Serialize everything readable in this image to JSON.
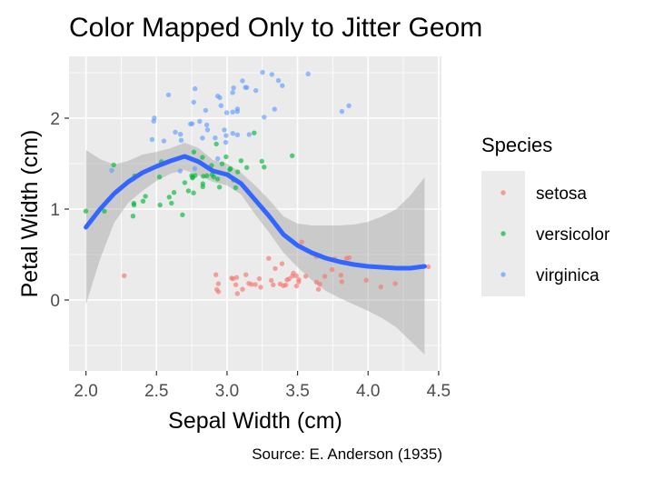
{
  "chart_data": {
    "type": "scatter",
    "title": "Color Mapped Only to Jitter Geom",
    "xlabel": "Sepal Width (cm)",
    "ylabel": "Petal Width (cm)",
    "caption": "Source: E. Anderson (1935)",
    "xlim": [
      1.88,
      4.52
    ],
    "ylim": [
      -0.78,
      2.68
    ],
    "x_ticks": [
      2.0,
      2.5,
      3.0,
      3.5,
      4.0,
      4.5
    ],
    "x_tick_labels": [
      "2.0",
      "2.5",
      "3.0",
      "3.5",
      "4.0",
      "4.5"
    ],
    "y_ticks": [
      0,
      1,
      2
    ],
    "y_tick_labels": [
      "0",
      "1",
      "2"
    ],
    "grid": true,
    "legend": {
      "title": "Species",
      "position": "right"
    },
    "series": [
      {
        "name": "setosa",
        "color": "#F8766D",
        "points": [
          [
            3.51,
            0.19
          ],
          [
            3.0,
            0.22
          ],
          [
            3.21,
            0.17
          ],
          [
            3.1,
            0.18
          ],
          [
            3.62,
            0.21
          ],
          [
            3.9,
            0.42
          ],
          [
            3.4,
            0.29
          ],
          [
            3.4,
            0.2
          ],
          [
            2.9,
            0.17
          ],
          [
            3.1,
            0.12
          ],
          [
            3.7,
            0.19
          ],
          [
            3.4,
            0.22
          ],
          [
            3.0,
            0.1
          ],
          [
            3.0,
            0.12
          ],
          [
            4.0,
            0.21
          ],
          [
            4.4,
            0.4
          ],
          [
            3.9,
            0.38
          ],
          [
            3.5,
            0.31
          ],
          [
            3.8,
            0.3
          ],
          [
            3.8,
            0.29
          ],
          [
            3.4,
            0.2
          ],
          [
            3.7,
            0.41
          ],
          [
            3.6,
            0.2
          ],
          [
            3.3,
            0.5
          ],
          [
            3.4,
            0.18
          ],
          [
            3.0,
            0.21
          ],
          [
            3.4,
            0.39
          ],
          [
            3.5,
            0.22
          ],
          [
            3.4,
            0.18
          ],
          [
            3.2,
            0.21
          ],
          [
            3.1,
            0.2
          ],
          [
            3.4,
            0.4
          ],
          [
            4.1,
            0.09
          ],
          [
            4.2,
            0.19
          ],
          [
            3.1,
            0.21
          ],
          [
            3.2,
            0.2
          ],
          [
            3.5,
            0.22
          ],
          [
            3.6,
            0.1
          ],
          [
            3.0,
            0.19
          ],
          [
            3.4,
            0.21
          ],
          [
            3.5,
            0.3
          ],
          [
            2.3,
            0.29
          ],
          [
            3.2,
            0.2
          ],
          [
            3.5,
            0.6
          ],
          [
            3.8,
            0.38
          ],
          [
            3.0,
            0.3
          ],
          [
            3.8,
            0.21
          ],
          [
            3.2,
            0.2
          ],
          [
            3.7,
            0.2
          ],
          [
            3.3,
            0.22
          ]
        ]
      },
      {
        "name": "versicolor",
        "color": "#00BA38",
        "points": [
          [
            3.2,
            1.41
          ],
          [
            3.2,
            1.5
          ],
          [
            3.1,
            1.5
          ],
          [
            2.3,
            1.3
          ],
          [
            2.8,
            1.51
          ],
          [
            2.8,
            1.3
          ],
          [
            3.3,
            1.6
          ],
          [
            2.4,
            1.0
          ],
          [
            2.9,
            1.3
          ],
          [
            2.7,
            1.4
          ],
          [
            2.0,
            1.05
          ],
          [
            3.0,
            1.5
          ],
          [
            2.2,
            1.0
          ],
          [
            2.9,
            1.4
          ],
          [
            2.9,
            1.3
          ],
          [
            3.1,
            1.4
          ],
          [
            3.0,
            1.5
          ],
          [
            2.7,
            1.0
          ],
          [
            2.2,
            1.5
          ],
          [
            2.5,
            1.1
          ],
          [
            3.2,
            1.8
          ],
          [
            2.8,
            1.3
          ],
          [
            2.5,
            1.5
          ],
          [
            2.8,
            1.2
          ],
          [
            2.9,
            1.3
          ],
          [
            3.0,
            1.4
          ],
          [
            2.8,
            1.4
          ],
          [
            3.0,
            1.7
          ],
          [
            2.9,
            1.5
          ],
          [
            2.6,
            1.0
          ],
          [
            2.4,
            1.1
          ],
          [
            2.4,
            1.0
          ],
          [
            2.7,
            1.2
          ],
          [
            2.7,
            1.6
          ],
          [
            3.0,
            1.5
          ],
          [
            3.4,
            1.6
          ],
          [
            3.1,
            1.5
          ],
          [
            2.3,
            1.3
          ],
          [
            3.0,
            1.3
          ],
          [
            2.5,
            1.3
          ],
          [
            2.6,
            1.2
          ],
          [
            3.0,
            1.4
          ],
          [
            2.6,
            1.2
          ],
          [
            2.3,
            1.0
          ],
          [
            2.7,
            1.3
          ],
          [
            3.0,
            1.2
          ],
          [
            2.9,
            1.3
          ],
          [
            2.9,
            1.3
          ],
          [
            2.5,
            1.1
          ],
          [
            2.8,
            1.3
          ]
        ]
      },
      {
        "name": "virginica",
        "color": "#619CFF",
        "points": [
          [
            3.3,
            2.5
          ],
          [
            2.7,
            1.9
          ],
          [
            3.0,
            2.1
          ],
          [
            2.9,
            1.8
          ],
          [
            3.0,
            2.2
          ],
          [
            3.0,
            2.1
          ],
          [
            2.5,
            1.7
          ],
          [
            2.9,
            1.8
          ],
          [
            2.5,
            1.8
          ],
          [
            3.6,
            2.5
          ],
          [
            3.2,
            2.0
          ],
          [
            2.7,
            1.9
          ],
          [
            3.0,
            2.1
          ],
          [
            2.5,
            2.0
          ],
          [
            2.8,
            2.4
          ],
          [
            3.2,
            2.3
          ],
          [
            3.0,
            1.8
          ],
          [
            3.8,
            2.2
          ],
          [
            2.6,
            2.3
          ],
          [
            2.2,
            1.5
          ],
          [
            3.2,
            2.3
          ],
          [
            2.8,
            2.0
          ],
          [
            2.8,
            2.0
          ],
          [
            2.7,
            1.8
          ],
          [
            3.3,
            2.1
          ],
          [
            3.2,
            1.8
          ],
          [
            2.8,
            1.8
          ],
          [
            3.0,
            1.8
          ],
          [
            2.8,
            2.1
          ],
          [
            3.0,
            1.6
          ],
          [
            2.8,
            1.9
          ],
          [
            3.8,
            2.0
          ],
          [
            2.8,
            2.2
          ],
          [
            2.8,
            1.5
          ],
          [
            2.6,
            1.4
          ],
          [
            3.0,
            2.3
          ],
          [
            3.4,
            2.4
          ],
          [
            3.1,
            1.8
          ],
          [
            3.0,
            1.8
          ],
          [
            3.1,
            2.1
          ],
          [
            3.1,
            2.4
          ],
          [
            3.1,
            2.3
          ],
          [
            2.7,
            1.9
          ],
          [
            3.2,
            2.3
          ],
          [
            3.3,
            2.5
          ],
          [
            3.0,
            2.3
          ],
          [
            2.5,
            1.9
          ],
          [
            3.0,
            2.0
          ],
          [
            3.4,
            2.3
          ],
          [
            3.0,
            1.8
          ]
        ]
      }
    ],
    "smooth": {
      "color": "#3366FF",
      "band_color": "#999999",
      "x": [
        2.0,
        2.1,
        2.2,
        2.3,
        2.4,
        2.5,
        2.6,
        2.7,
        2.8,
        2.9,
        3.0,
        3.1,
        3.2,
        3.3,
        3.4,
        3.5,
        3.6,
        3.7,
        3.8,
        3.9,
        4.0,
        4.1,
        4.2,
        4.3,
        4.4
      ],
      "y": [
        0.8,
        1.0,
        1.17,
        1.3,
        1.4,
        1.47,
        1.53,
        1.58,
        1.52,
        1.42,
        1.38,
        1.28,
        1.1,
        0.92,
        0.72,
        0.6,
        0.52,
        0.46,
        0.42,
        0.39,
        0.37,
        0.36,
        0.35,
        0.35,
        0.37
      ],
      "lower": [
        -0.05,
        0.45,
        0.85,
        1.07,
        1.2,
        1.31,
        1.39,
        1.43,
        1.37,
        1.3,
        1.26,
        1.16,
        0.94,
        0.74,
        0.52,
        0.36,
        0.22,
        0.1,
        0.02,
        -0.05,
        -0.12,
        -0.2,
        -0.3,
        -0.45,
        -0.6
      ],
      "upper": [
        1.65,
        1.55,
        1.49,
        1.53,
        1.6,
        1.63,
        1.67,
        1.73,
        1.67,
        1.54,
        1.5,
        1.4,
        1.26,
        1.1,
        0.92,
        0.84,
        0.82,
        0.82,
        0.82,
        0.83,
        0.86,
        0.92,
        1.0,
        1.15,
        1.35
      ]
    }
  }
}
